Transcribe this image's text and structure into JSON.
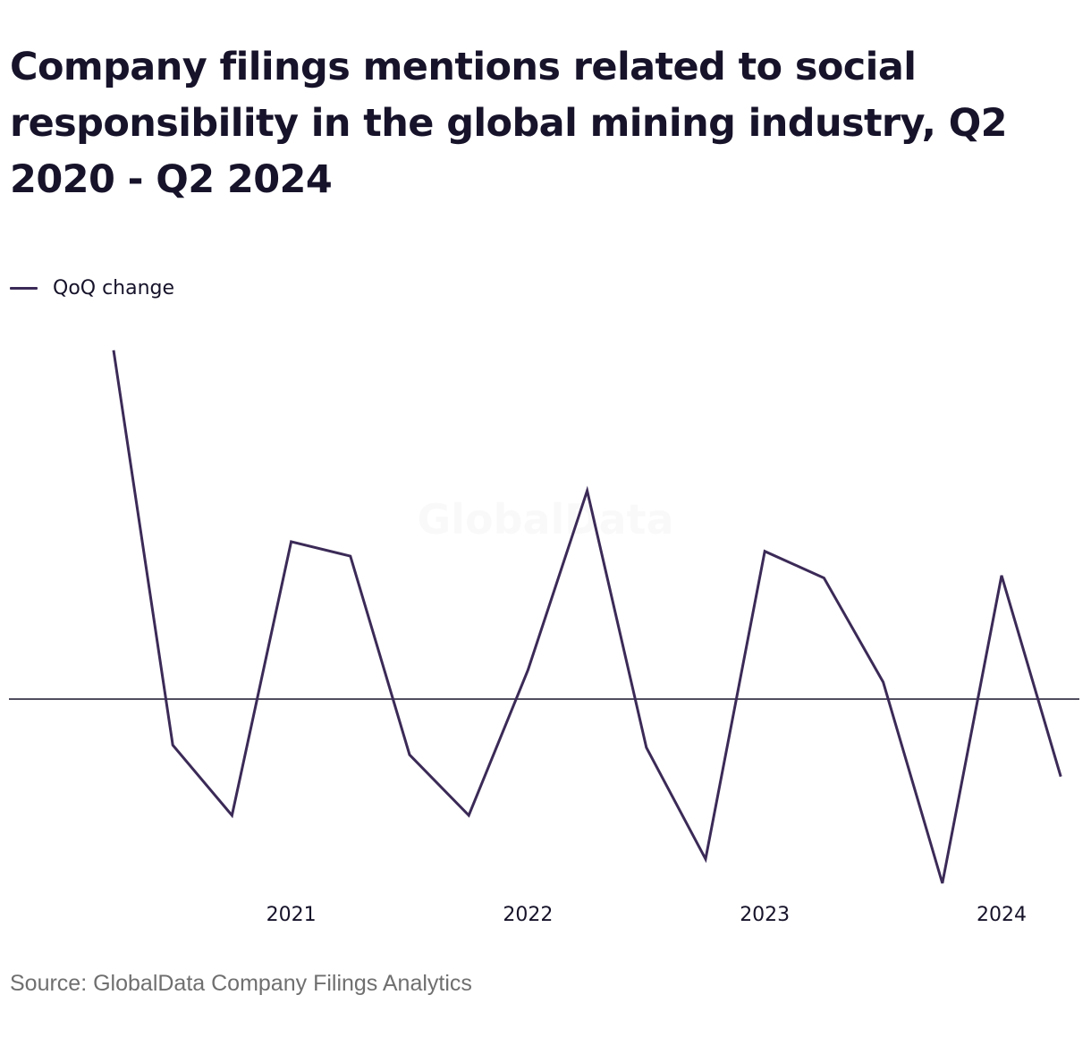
{
  "chart_data": {
    "type": "line",
    "title": "Company filings mentions related to social responsibility in the global mining industry, Q2 2020 - Q2 2024",
    "source": "Source: GlobalData Company Filings Analytics",
    "watermark": "GlobalData",
    "legend_position": "top-left",
    "grid": false,
    "zero_line": true,
    "xlabel": "",
    "ylabel": "",
    "x": [
      "Q2 2020",
      "Q3 2020",
      "Q4 2020",
      "Q1 2021",
      "Q2 2021",
      "Q3 2021",
      "Q4 2021",
      "Q1 2022",
      "Q2 2022",
      "Q3 2022",
      "Q4 2022",
      "Q1 2023",
      "Q2 2023",
      "Q3 2023",
      "Q4 2023",
      "Q1 2024",
      "Q2 2024"
    ],
    "x_tick_labels": [
      "2021",
      "2022",
      "2023",
      "2024"
    ],
    "x_tick_positions": [
      "Q1 2021",
      "Q1 2022",
      "Q1 2023",
      "Q1 2024"
    ],
    "ylim": [
      -40,
      74
    ],
    "series": [
      {
        "name": "QoQ change",
        "color": "#3b2a57",
        "values": [
          72,
          -9.5,
          -24,
          32.5,
          29.5,
          -11.5,
          -24,
          6,
          43,
          -10,
          -33,
          30.5,
          25,
          3.5,
          -38,
          25.5,
          -16
        ]
      }
    ]
  }
}
